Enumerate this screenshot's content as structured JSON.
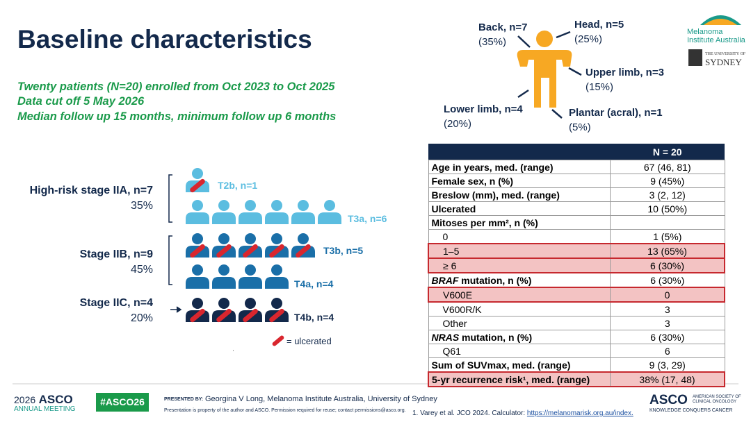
{
  "title": "Baseline characteristics",
  "intro": [
    "Twenty patients (N=20) enrolled from Oct 2023 to Oct 2025",
    "Data cut off 5 May 2026",
    "Median follow up 15 months, minimum follow up 6 months"
  ],
  "body_sites": [
    {
      "label": "Back, n=7",
      "pct": "(35%)"
    },
    {
      "label": "Head, n=5",
      "pct": "(25%)"
    },
    {
      "label": "Upper limb, n=3",
      "pct": "(15%)"
    },
    {
      "label": "Lower limb, n=4",
      "pct": "(20%)"
    },
    {
      "label": "Plantar (acral), n=1",
      "pct": "(5%)"
    }
  ],
  "stages": [
    {
      "label": "High-risk stage IIA, n=7",
      "pct": "35%",
      "color": "#5bbde0",
      "groups": [
        {
          "label": "T2b, n=1",
          "count": 1,
          "ulcerated": true
        },
        {
          "label": "T3a, n=6",
          "count": 6,
          "ulcerated": false
        }
      ]
    },
    {
      "label": "Stage IIB, n=9",
      "pct": "45%",
      "color": "#1a6fa8",
      "groups": [
        {
          "label": "T3b, n=5",
          "count": 5,
          "ulcerated": true
        },
        {
          "label": "T4a, n=4",
          "count": 4,
          "ulcerated": false
        }
      ]
    },
    {
      "label": "Stage IIC, n=4",
      "pct": "20%",
      "color": "#13294b",
      "groups": [
        {
          "label": "T4b, n=4",
          "count": 4,
          "ulcerated": true
        }
      ]
    }
  ],
  "legend": "= ulcerated",
  "table": {
    "header": "N = 20",
    "rows": [
      {
        "label": "Age in years, med. (range)",
        "value": "67 (46, 81)"
      },
      {
        "label": "Female sex, n (%)",
        "value": "9 (45%)"
      },
      {
        "label": "Breslow (mm), med. (range)",
        "value": "3 (2, 12)"
      },
      {
        "label": "Ulcerated",
        "value": "10 (50%)"
      },
      {
        "label": "Mitoses per mm², n (%)",
        "value": ""
      },
      {
        "label": "0",
        "value": "1 (5%)",
        "indent": true
      },
      {
        "label": "1–5",
        "value": "13 (65%)",
        "indent": true,
        "highlight": true
      },
      {
        "label": "≥ 6",
        "value": "6 (30%)",
        "indent": true,
        "highlight": true
      },
      {
        "italic": "BRAF",
        "label": " mutation, n (%)",
        "value": "6 (30%)"
      },
      {
        "label": "V600E",
        "value": "0",
        "indent": true,
        "highlight": true
      },
      {
        "label": "V600R/K",
        "value": "3",
        "indent": true
      },
      {
        "label": "Other",
        "value": "3",
        "indent": true
      },
      {
        "italic": "NRAS",
        "label": " mutation, n (%)",
        "value": "6 (30%)"
      },
      {
        "label": "Q61",
        "value": "6",
        "indent": true
      },
      {
        "label": "Sum of SUVmax, med. (range)",
        "value": "9 (3, 29)"
      },
      {
        "label": "5-yr recurrence risk¹, med. (range)",
        "value": "38% (17, 48)",
        "highlight": true
      }
    ]
  },
  "logos": {
    "mia_1": "Melanoma",
    "mia_2": "Institute Australia",
    "usyd_1": "THE UNIVERSITY OF",
    "usyd_2": "SYDNEY"
  },
  "footer": {
    "meeting_year": "2026",
    "meeting_name": "ASCO",
    "meeting_sub": "ANNUAL MEETING",
    "hashtag": "#ASCO26",
    "presented_by": "PRESENTED BY:",
    "presenter": "Georgina V Long, Melanoma Institute Australia, University of Sydney",
    "disclaimer": "Presentation is property of the author and ASCO. Permission required for reuse; contact permissions@asco.org.",
    "reference": "1. Varey et al. JCO 2024. Calculator: ",
    "link": "https://melanomarisk.org.au/index.",
    "asco": "ASCO",
    "asco_sub_1": "AMERICAN SOCIETY OF",
    "asco_sub_2": "CLINICAL ONCOLOGY",
    "asco_tag": "KNOWLEDGE CONQUERS CANCER"
  }
}
